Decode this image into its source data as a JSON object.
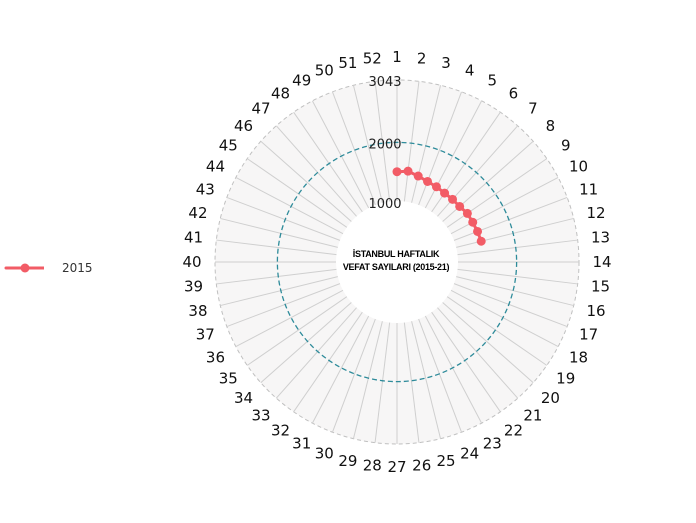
{
  "chart_data": {
    "type": "polar-line",
    "title_line1": "İSTANBUL HAFTALIK",
    "title_line2": "VEFAT SAYILARI (2015-21)",
    "week_labels": [
      "1",
      "2",
      "3",
      "4",
      "5",
      "6",
      "7",
      "8",
      "9",
      "10",
      "11",
      "12",
      "13",
      "14",
      "15",
      "16",
      "17",
      "18",
      "19",
      "20",
      "21",
      "22",
      "23",
      "24",
      "25",
      "26",
      "27",
      "28",
      "29",
      "30",
      "31",
      "32",
      "33",
      "34",
      "35",
      "36",
      "37",
      "38",
      "39",
      "40",
      "41",
      "42",
      "43",
      "44",
      "45",
      "46",
      "47",
      "48",
      "49",
      "50",
      "51",
      "52"
    ],
    "radial_ticks": [
      {
        "label": "1000",
        "value": 1000
      },
      {
        "label": "2000",
        "value": 2000
      },
      {
        "label": "3043",
        "value": 3043
      }
    ],
    "r_range": [
      0,
      3043
    ],
    "reference_circle_value": 2000,
    "series": [
      {
        "name": "2015",
        "color": "#f25c66",
        "weeks": [
          1,
          2,
          3,
          4,
          5,
          6,
          7,
          8,
          9,
          10,
          11,
          12
        ],
        "values": [
          1510,
          1530,
          1480,
          1440,
          1420,
          1400,
          1400,
          1400,
          1430,
          1430,
          1440,
          1450
        ]
      }
    ],
    "legend_position": "left",
    "grid": true
  }
}
